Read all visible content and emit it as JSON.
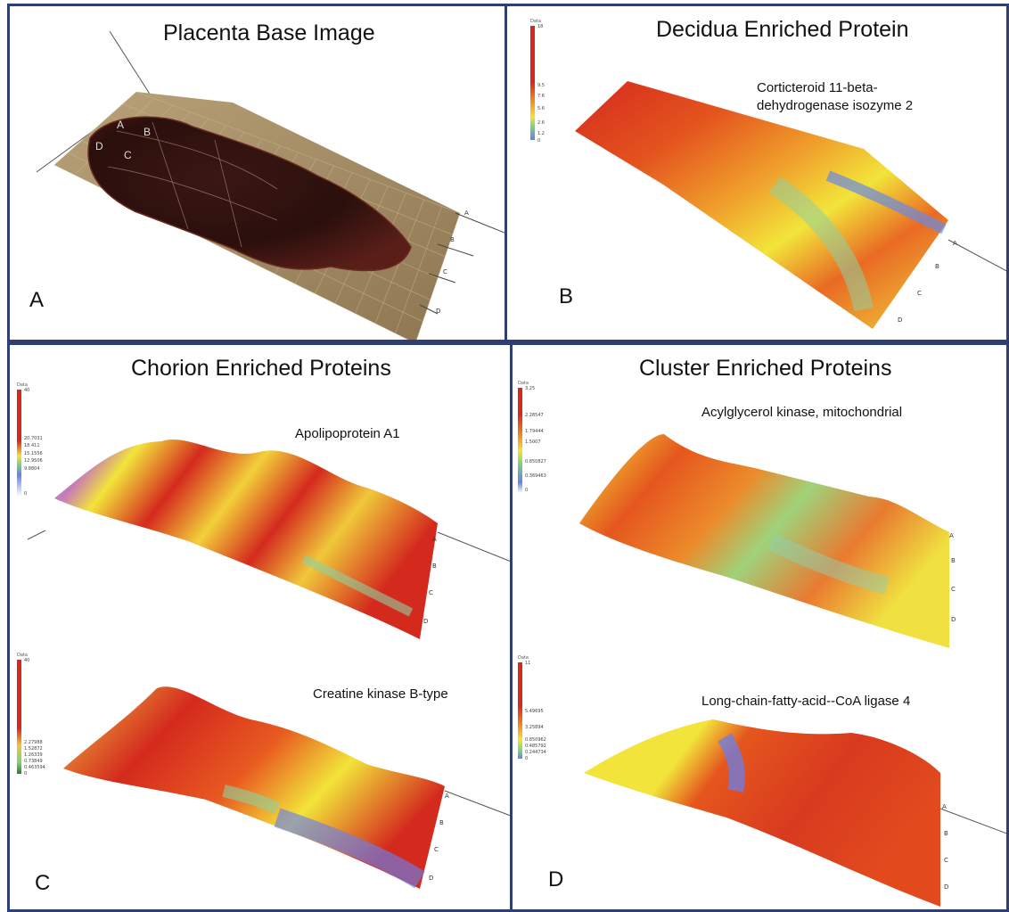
{
  "panels": {
    "A": {
      "title": "Placenta Base Image",
      "label": "A",
      "regions": [
        "A",
        "B",
        "D",
        "C"
      ]
    },
    "B": {
      "title": "Decidua Enriched Protein",
      "label": "B",
      "protein_line1": "Corticteroid 11-beta-",
      "protein_line2": "dehydrogenase isozyme 2",
      "colorbar": {
        "title": "Data",
        "max": "18",
        "ticks": [
          "9.5",
          "7.6",
          "5.6",
          "2.6",
          "1.2"
        ],
        "min": "0"
      }
    },
    "C": {
      "title": "Chorion Enriched Proteins",
      "label": "C",
      "protein1": "Apolipoprotein A1",
      "protein2": "Creatine kinase B-type",
      "colorbar1": {
        "title": "Data",
        "max": "40",
        "ticks": [
          "20.7031",
          "18.411",
          "15.1556",
          "12.9506",
          "9.8804"
        ],
        "min": "0"
      },
      "colorbar2": {
        "title": "Data",
        "max": "40",
        "ticks": [
          "2.27988",
          "1.52872",
          "1.26339",
          "0.73849",
          "0.463594"
        ],
        "min": "0"
      }
    },
    "D": {
      "title": "Cluster Enriched Proteins",
      "label": "D",
      "protein1": "Acylglycerol kinase, mitochondrial",
      "protein2": "Long-chain-fatty-acid--CoA ligase 4",
      "colorbar1": {
        "title": "Data",
        "max": "3.25",
        "ticks": [
          "2.28547",
          "1.79444",
          "1.5007",
          "0.850827",
          "0.369463"
        ],
        "min": "0"
      },
      "colorbar2": {
        "title": "Data",
        "max": "11",
        "ticks": [
          "5.49695",
          "3.25894",
          "0.850962",
          "0.485792",
          "0.244734"
        ],
        "min": "0"
      }
    }
  },
  "axis_letters": [
    "A",
    "B",
    "C",
    "D"
  ],
  "colors": {
    "border": "#2f3f73",
    "red": "#d42a1e",
    "orange": "#ec6f24",
    "yellow": "#f2e43a",
    "green": "#7fd27a",
    "blue": "#6a7fe8"
  }
}
